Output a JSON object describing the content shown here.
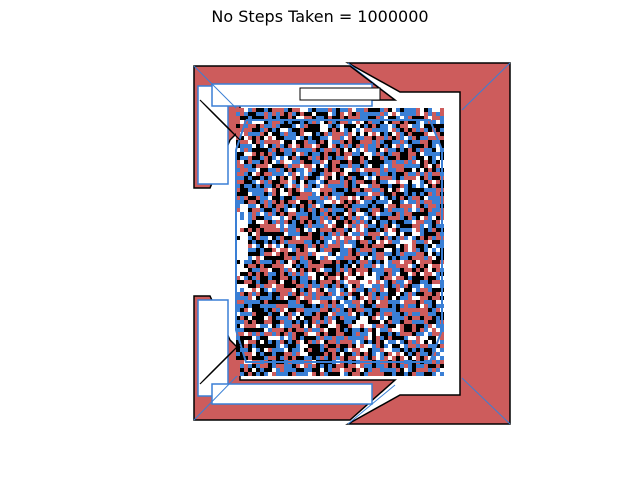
{
  "title": "No Steps Taken = 1000000",
  "palette": {
    "background": "#ffffff",
    "red": "#cd5c5c",
    "blue": "#3a7fd5",
    "black": "#000000",
    "white": "#ffffff"
  },
  "grid": {
    "axes_visible": false
  }
}
